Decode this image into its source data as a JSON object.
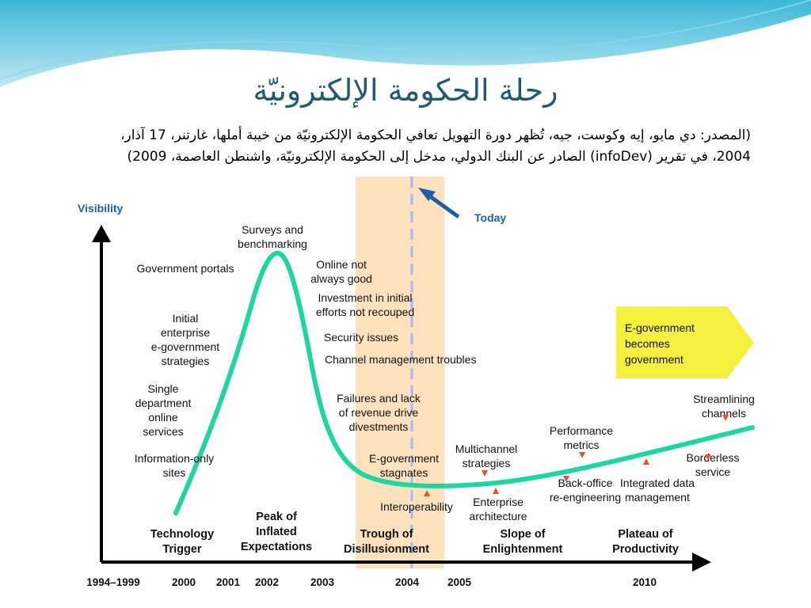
{
  "slide": {
    "title": "رحلة الحكومة الإلكترونيّة",
    "source_line1": "(المصدر: دي مايو، إيه وكوست، جيه، تُظهر دورة التهويل تعافي الحكومة الإلكترونيّة من خيبة أملها، غارتنر، 17 آذار،",
    "source_line2": "2004، في تقرير (infoDev) الصادر عن البنك الدولي، مدخل إلى الحكومة الإلكترونيّة، واشنطن العاصمة، 2009)"
  },
  "chart_data": {
    "type": "line",
    "ylabel": "Visibility",
    "today_label": "Today",
    "today_year": "2004",
    "x_ticks": [
      "1994–1999",
      "2000",
      "2001",
      "2002",
      "2003",
      "2004",
      "2005",
      "2010"
    ],
    "phases": [
      {
        "name": "Technology Trigger",
        "lines": [
          "Technology",
          "Trigger"
        ]
      },
      {
        "name": "Peak of Inflated Expectations",
        "lines": [
          "Peak of",
          "Inflated",
          "Expectations"
        ]
      },
      {
        "name": "Trough of Disillusionment",
        "lines": [
          "Trough of",
          "Disillusionment"
        ]
      },
      {
        "name": "Slope of Enlightenment",
        "lines": [
          "Slope of",
          "Enlightenment"
        ]
      },
      {
        "name": "Plateau of Productivity",
        "lines": [
          "Plateau of",
          "Productivity"
        ]
      }
    ],
    "annotations": [
      {
        "lines": [
          "Government portals"
        ]
      },
      {
        "lines": [
          "Initial",
          "enterprise",
          "e-government",
          "strategies"
        ]
      },
      {
        "lines": [
          "Single",
          "department",
          "online",
          "services"
        ]
      },
      {
        "lines": [
          "Information-only",
          "sites"
        ]
      },
      {
        "lines": [
          "Surveys and",
          "benchmarking"
        ]
      },
      {
        "lines": [
          "Online not",
          "always good"
        ]
      },
      {
        "lines": [
          "Investment in initial",
          "efforts not recouped"
        ]
      },
      {
        "lines": [
          "Security issues"
        ]
      },
      {
        "lines": [
          "Channel management troubles"
        ]
      },
      {
        "lines": [
          "Failures and lack",
          "of revenue drive",
          "divestments"
        ]
      },
      {
        "lines": [
          "E-government",
          "stagnates"
        ]
      },
      {
        "lines": [
          "Interoperability"
        ]
      },
      {
        "lines": [
          "Multichannel",
          "strategies"
        ]
      },
      {
        "lines": [
          "Enterprise",
          "architecture"
        ]
      },
      {
        "lines": [
          "Performance",
          "metrics"
        ]
      },
      {
        "lines": [
          "Back-office",
          "re-engineering"
        ]
      },
      {
        "lines": [
          "Integrated data",
          "management"
        ]
      },
      {
        "lines": [
          "Borderless",
          "service"
        ]
      },
      {
        "lines": [
          "Streamlining",
          "channels"
        ]
      }
    ],
    "callout": {
      "lines": [
        "E-government",
        "becomes",
        "government"
      ]
    },
    "colors": {
      "curve": "#1fd6a0",
      "axis": "#000000",
      "trough_band": "#fde2bd",
      "today_line": "#a8b8ff",
      "today_arrow": "#1e5fa8",
      "ylabel": "#1e5fa8",
      "marker": "#e8542a",
      "callout": "#f5f03e",
      "title": "#1f5a73"
    }
  }
}
